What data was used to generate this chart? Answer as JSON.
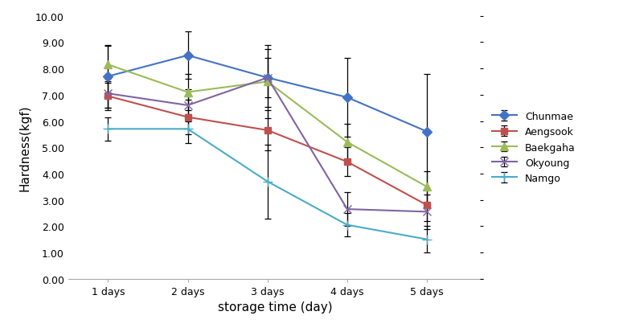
{
  "x": [
    1,
    2,
    3,
    4,
    5
  ],
  "x_labels": [
    "1 days",
    "2 days",
    "3 days",
    "4 days",
    "5 days"
  ],
  "series": {
    "Chunmae": {
      "y": [
        7.7,
        8.5,
        7.65,
        6.9,
        5.6
      ],
      "yerr": [
        1.2,
        0.9,
        1.1,
        1.5,
        2.2
      ],
      "color": "#4472C4",
      "marker": "D",
      "markersize": 6
    },
    "Aengsook": {
      "y": [
        6.95,
        6.15,
        5.65,
        4.45,
        2.8
      ],
      "yerr": [
        0.55,
        0.65,
        0.75,
        0.55,
        0.6
      ],
      "color": "#C0504D",
      "marker": "s",
      "markersize": 6
    },
    "Baekgaha": {
      "y": [
        8.15,
        7.1,
        7.5,
        5.2,
        3.5
      ],
      "yerr": [
        0.7,
        0.7,
        1.4,
        0.7,
        0.6
      ],
      "color": "#9BBB59",
      "marker": "^",
      "markersize": 7
    },
    "Okyoung": {
      "y": [
        7.05,
        6.6,
        7.65,
        2.65,
        2.55
      ],
      "yerr": [
        0.55,
        0.6,
        0.75,
        0.65,
        0.65
      ],
      "color": "#8064A2",
      "marker": "x",
      "markersize": 7
    },
    "Namgo": {
      "y": [
        5.7,
        5.7,
        3.7,
        2.05,
        1.5
      ],
      "yerr": [
        0.45,
        0.55,
        1.4,
        0.45,
        0.5
      ],
      "color": "#4BACC6",
      "marker": "+",
      "markersize": 8
    }
  },
  "xlabel": "storage time (day)",
  "ylabel": "Hardness(kgf)",
  "ylim": [
    0.0,
    10.0
  ],
  "yticks": [
    0.0,
    1.0,
    2.0,
    3.0,
    4.0,
    5.0,
    6.0,
    7.0,
    8.0,
    9.0,
    10.0
  ],
  "ytick_labels": [
    "0.00",
    "1.00",
    "2.00",
    "3.00",
    "4.00",
    "5.00",
    "6.00",
    "7.00",
    "8.00",
    "9.00",
    "10.00"
  ],
  "background_color": "#FFFFFF",
  "legend_fontsize": 9,
  "axis_fontsize": 11,
  "tick_fontsize": 9
}
